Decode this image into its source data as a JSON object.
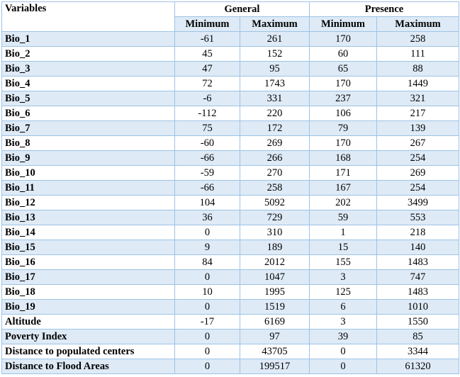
{
  "table": {
    "variables_header": "Variables",
    "group_headers": [
      "General",
      "Presence"
    ],
    "sub_headers": [
      "Minimum",
      "Maximum",
      "Minimum",
      "Maximum"
    ],
    "rows": [
      {
        "label": "Bio_1",
        "values": [
          "-61",
          "261",
          "170",
          "258"
        ]
      },
      {
        "label": "Bio_2",
        "values": [
          "45",
          "152",
          "60",
          "111"
        ]
      },
      {
        "label": "Bio_3",
        "values": [
          "47",
          "95",
          "65",
          "88"
        ]
      },
      {
        "label": "Bio_4",
        "values": [
          "72",
          "1743",
          "170",
          "1449"
        ]
      },
      {
        "label": "Bio_5",
        "values": [
          "-6",
          "331",
          "237",
          "321"
        ]
      },
      {
        "label": "Bio_6",
        "values": [
          "-112",
          "220",
          "106",
          "217"
        ]
      },
      {
        "label": "Bio_7",
        "values": [
          "75",
          "172",
          "79",
          "139"
        ]
      },
      {
        "label": "Bio_8",
        "values": [
          "-60",
          "269",
          "170",
          "267"
        ]
      },
      {
        "label": "Bio_9",
        "values": [
          "-66",
          "266",
          "168",
          "254"
        ]
      },
      {
        "label": "Bio_10",
        "values": [
          "-59",
          "270",
          "171",
          "269"
        ]
      },
      {
        "label": "Bio_11",
        "values": [
          "-66",
          "258",
          "167",
          "254"
        ]
      },
      {
        "label": "Bio_12",
        "values": [
          "104",
          "5092",
          "202",
          "3499"
        ]
      },
      {
        "label": "Bio_13",
        "values": [
          "36",
          "729",
          "59",
          "553"
        ]
      },
      {
        "label": "Bio_14",
        "values": [
          "0",
          "310",
          "1",
          "218"
        ]
      },
      {
        "label": "Bio_15",
        "values": [
          "9",
          "189",
          "15",
          "140"
        ]
      },
      {
        "label": "Bio_16",
        "values": [
          "84",
          "2012",
          "155",
          "1483"
        ]
      },
      {
        "label": "Bio_17",
        "values": [
          "0",
          "1047",
          "3",
          "747"
        ]
      },
      {
        "label": "Bio_18",
        "values": [
          "10",
          "1995",
          "125",
          "1483"
        ]
      },
      {
        "label": "Bio_19",
        "values": [
          "0",
          "1519",
          "6",
          "1010"
        ]
      },
      {
        "label": "Altitude",
        "values": [
          "-17",
          "6169",
          "3",
          "1550"
        ]
      },
      {
        "label": "Poverty Index",
        "values": [
          "0",
          "97",
          "39",
          "85"
        ]
      },
      {
        "label": "Distance to populated centers",
        "values": [
          "0",
          "43705",
          "0",
          "3344"
        ]
      },
      {
        "label": "Distance to Flood Areas",
        "values": [
          "0",
          "199517",
          "0",
          "61320"
        ]
      }
    ]
  },
  "colors": {
    "border": "#9dc3e6",
    "row_shade": "#deeaf6",
    "background": "#ffffff"
  }
}
